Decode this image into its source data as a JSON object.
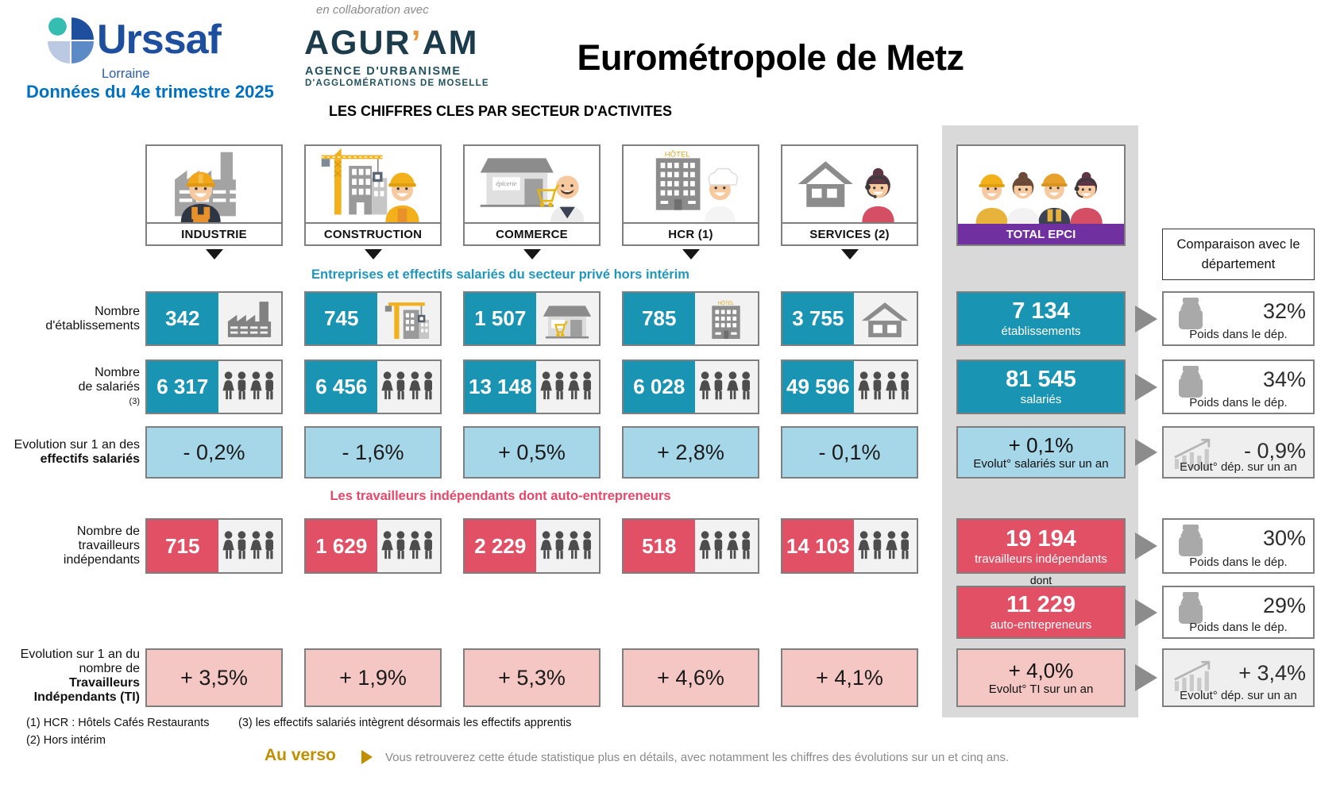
{
  "header": {
    "urssaf": {
      "brand": "Urssaf",
      "region": "Lorraine"
    },
    "period_label": "Données du 4e trimestre 2025",
    "collab_label": "en collaboration avec",
    "aguram": {
      "p1": "AGUR",
      "p2": "’",
      "p3": "AM",
      "line1": "AGENCE D'URBANISME",
      "line2": "D'AGGLOMÉRATIONS DE MOSELLE"
    },
    "title": "Eurométropole de Metz",
    "subtitle": "LES CHIFFRES CLES PAR SECTEUR D'ACTIVITES"
  },
  "section_headers": {
    "salaries_section": "Entreprises et effectifs salariés du secteur privé hors intérim",
    "independants_section": "Les travailleurs indépendants dont auto-entrepreneurs"
  },
  "row_labels": {
    "etablissements": [
      "Nombre",
      "d'établissements"
    ],
    "salaries": [
      "Nombre",
      "de salariés",
      "(3)"
    ],
    "evolution_salaries": [
      "Evolution sur 1 an des",
      "effectifs salariés"
    ],
    "travailleurs_independants": [
      "Nombre de",
      "travailleurs",
      "indépendants"
    ],
    "evolution_ti": [
      "Evolution sur 1 an du",
      "nombre de",
      "Travailleurs",
      "Indépendants (TI)"
    ]
  },
  "sectors": [
    {
      "name": "INDUSTRIE",
      "icon": "industrie",
      "etablissements": "342",
      "salaries": "6 317",
      "evolution_salaries": "- 0,2%",
      "travailleurs_independants": "715",
      "evolution_ti": "+ 3,5%"
    },
    {
      "name": "CONSTRUCTION",
      "icon": "construction",
      "etablissements": "745",
      "salaries": "6 456",
      "evolution_salaries": "- 1,6%",
      "travailleurs_independants": "1 629",
      "evolution_ti": "+ 1,9%"
    },
    {
      "name": "COMMERCE",
      "icon": "commerce",
      "etablissements": "1 507",
      "salaries": "13 148",
      "evolution_salaries": "+ 0,5%",
      "travailleurs_independants": "2 229",
      "evolution_ti": "+ 5,3%"
    },
    {
      "name": "HCR (1)",
      "icon": "hcr",
      "etablissements": "785",
      "salaries": "6 028",
      "evolution_salaries": "+ 2,8%",
      "travailleurs_independants": "518",
      "evolution_ti": "+ 4,6%"
    },
    {
      "name": "SERVICES (2)",
      "icon": "services",
      "etablissements": "3 755",
      "salaries": "49 596",
      "evolution_salaries": "- 0,1%",
      "travailleurs_independants": "14 103",
      "evolution_ti": "+ 4,1%"
    }
  ],
  "total": {
    "name": "TOTAL EPCI",
    "etablissements": {
      "value": "7 134",
      "label": "établissements"
    },
    "salaries": {
      "value": "81 545",
      "label": "salariés"
    },
    "evolution_salaries": {
      "value": "+ 0,1%",
      "label": "Evolut° salariés sur un an"
    },
    "travailleurs_independants": {
      "value": "19 194",
      "label": "travailleurs indépendants"
    },
    "dont_label": "dont",
    "auto_entrepreneurs": {
      "value": "11 229",
      "label": "auto-entrepreneurs"
    },
    "evolution_ti": {
      "value": "+ 4,0%",
      "label": "Evolut° TI sur un an"
    }
  },
  "comparison": {
    "header": "Comparaison avec le département",
    "rows": [
      {
        "value": "32%",
        "label": "Poids dans le dép.",
        "icon": "weight"
      },
      {
        "value": "34%",
        "label": "Poids dans le dép.",
        "icon": "weight"
      },
      {
        "value": "- 0,9%",
        "label": "Evolut° dép. sur un an",
        "icon": "chart"
      },
      {
        "value": "30%",
        "label": "Poids dans le dép.",
        "icon": "weight"
      },
      {
        "value": "29%",
        "label": "Poids dans le dép.",
        "icon": "weight"
      },
      {
        "value": "+ 3,4%",
        "label": "Evolut° dép. sur un an",
        "icon": "chart"
      }
    ]
  },
  "footnotes": [
    "(1) HCR : Hôtels Cafés Restaurants",
    "(2) Hors intérim",
    "(3) les effectifs salariés intègrent désormais les effectifs apprentis"
  ],
  "footer": {
    "au_verso": "Au verso",
    "note": "Vous retrouverez cette étude statistique plus en détails, avec notamment les chiffres des évolutions sur un et cinq ans."
  },
  "colors": {
    "teal": "#1A94B3",
    "light_blue": "#A6D7E8",
    "red": "#E25066",
    "light_pink": "#F5C7C4",
    "purple": "#7030A0",
    "band_gray": "#D9D9D9",
    "gold": "#BF8F00",
    "urssaf_blue": "#1D4F9E",
    "period_blue": "#0070C0",
    "aguram_navy": "#1C3B4B",
    "aguram_orange": "#E8973F",
    "section_teal_text": "#2196BD",
    "section_red_text": "#E8476A"
  }
}
